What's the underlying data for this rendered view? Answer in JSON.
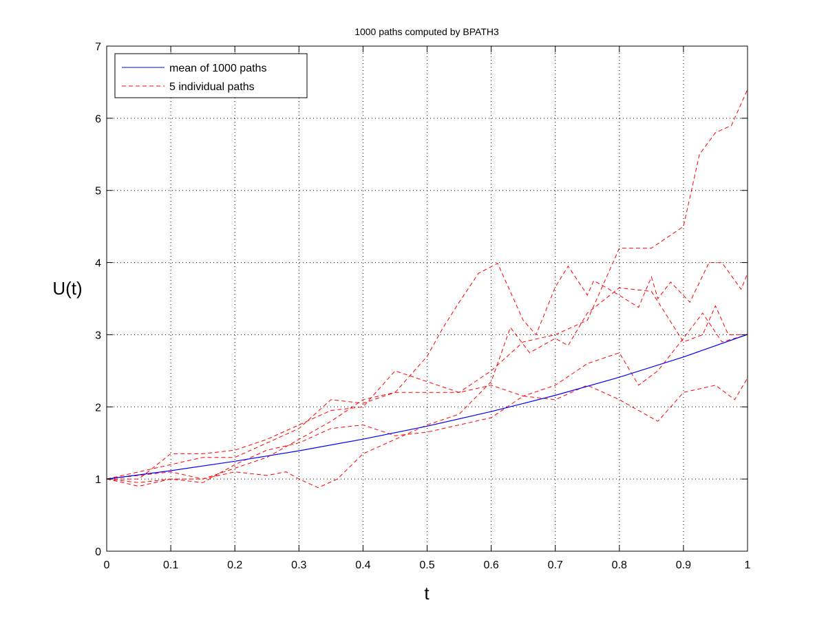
{
  "chart_data": {
    "type": "line",
    "title": "1000 paths computed by BPATH3",
    "xlabel": "t",
    "ylabel": "U(t)",
    "xlim": [
      0,
      1
    ],
    "ylim": [
      0,
      7
    ],
    "xticks": [
      0,
      0.1,
      0.2,
      0.3,
      0.4,
      0.5,
      0.6,
      0.7,
      0.8,
      0.9,
      1
    ],
    "xtick_labels": [
      "0",
      "0.1",
      "0.2",
      "0.3",
      "0.4",
      "0.5",
      "0.6",
      "0.7",
      "0.8",
      "0.9",
      "1"
    ],
    "yticks": [
      0,
      1,
      2,
      3,
      4,
      5,
      6,
      7
    ],
    "ytick_labels": [
      "0",
      "1",
      "2",
      "3",
      "4",
      "5",
      "6",
      "7"
    ],
    "grid": true,
    "legend_position": "top-left",
    "series": [
      {
        "name": "mean of 1000 paths",
        "color": "#0000ff",
        "style": "solid",
        "x": [
          0,
          0.1,
          0.2,
          0.3,
          0.4,
          0.5,
          0.6,
          0.7,
          0.8,
          0.9,
          1
        ],
        "y": [
          1,
          1.116,
          1.246,
          1.391,
          1.553,
          1.733,
          1.935,
          2.16,
          2.411,
          2.691,
          3.004
        ]
      },
      {
        "name": "5 individual paths",
        "color": "#ff0000",
        "style": "dashed",
        "paths": [
          {
            "x": [
              0,
              0.05,
              0.1,
              0.15,
              0.2,
              0.25,
              0.3,
              0.35,
              0.4,
              0.45,
              0.5,
              0.55,
              0.6,
              0.65,
              0.7,
              0.75,
              0.8,
              0.85,
              0.9,
              0.925,
              0.95,
              0.975,
              1
            ],
            "y": [
              1,
              1.05,
              1.1,
              1.0,
              1.15,
              1.3,
              1.55,
              1.8,
              2.1,
              2.2,
              2.2,
              2.2,
              2.5,
              2.9,
              3.0,
              3.2,
              4.2,
              4.2,
              4.5,
              5.5,
              5.8,
              5.9,
              6.4
            ]
          },
          {
            "x": [
              0,
              0.05,
              0.1,
              0.15,
              0.2,
              0.25,
              0.3,
              0.35,
              0.4,
              0.45,
              0.5,
              0.525,
              0.55,
              0.58,
              0.61,
              0.65,
              0.67,
              0.7,
              0.72,
              0.75,
              0.76,
              0.79,
              0.83,
              0.85,
              0.86,
              0.88,
              0.91,
              0.94,
              0.96,
              0.99,
              1
            ],
            "y": [
              1,
              1.1,
              1.2,
              1.3,
              1.3,
              1.5,
              1.7,
              2.1,
              2.05,
              2.2,
              2.7,
              3.1,
              3.45,
              3.85,
              3.99,
              3.2,
              3.0,
              3.66,
              3.95,
              3.55,
              3.75,
              3.6,
              3.38,
              3.8,
              3.5,
              3.73,
              3.45,
              4.0,
              4.0,
              3.63,
              3.85
            ]
          },
          {
            "x": [
              0,
              0.05,
              0.1,
              0.15,
              0.2,
              0.25,
              0.28,
              0.3,
              0.33,
              0.36,
              0.4,
              0.45,
              0.5,
              0.55,
              0.6,
              0.63,
              0.66,
              0.7,
              0.72,
              0.75,
              0.8,
              0.85,
              0.9,
              0.93,
              0.95,
              0.97,
              1
            ],
            "y": [
              1,
              0.95,
              1.0,
              1.0,
              1.1,
              1.05,
              1.1,
              1.0,
              0.88,
              1.0,
              1.35,
              1.55,
              1.75,
              1.9,
              2.35,
              3.1,
              2.75,
              2.95,
              2.85,
              3.3,
              3.65,
              3.6,
              2.9,
              3.0,
              3.4,
              3.0,
              3.0
            ]
          },
          {
            "x": [
              0,
              0.05,
              0.1,
              0.15,
              0.2,
              0.25,
              0.3,
              0.35,
              0.4,
              0.45,
              0.5,
              0.55,
              0.6,
              0.65,
              0.7,
              0.75,
              0.8,
              0.83,
              0.86,
              0.9,
              0.93,
              0.96,
              1
            ],
            "y": [
              1,
              1.0,
              1.35,
              1.35,
              1.4,
              1.55,
              1.75,
              1.95,
              2.0,
              2.5,
              2.35,
              2.2,
              2.3,
              2.15,
              2.3,
              2.6,
              2.75,
              2.3,
              2.5,
              2.95,
              3.3,
              2.9,
              3.0
            ]
          },
          {
            "x": [
              0,
              0.05,
              0.1,
              0.15,
              0.2,
              0.25,
              0.3,
              0.35,
              0.4,
              0.45,
              0.5,
              0.55,
              0.6,
              0.65,
              0.7,
              0.75,
              0.8,
              0.83,
              0.86,
              0.9,
              0.95,
              0.98,
              1
            ],
            "y": [
              1,
              0.9,
              1.0,
              0.95,
              1.2,
              1.4,
              1.5,
              1.7,
              1.75,
              1.6,
              1.65,
              1.75,
              1.85,
              2.15,
              2.1,
              2.3,
              2.1,
              1.95,
              1.8,
              2.2,
              2.3,
              2.1,
              2.4
            ]
          }
        ]
      }
    ]
  }
}
